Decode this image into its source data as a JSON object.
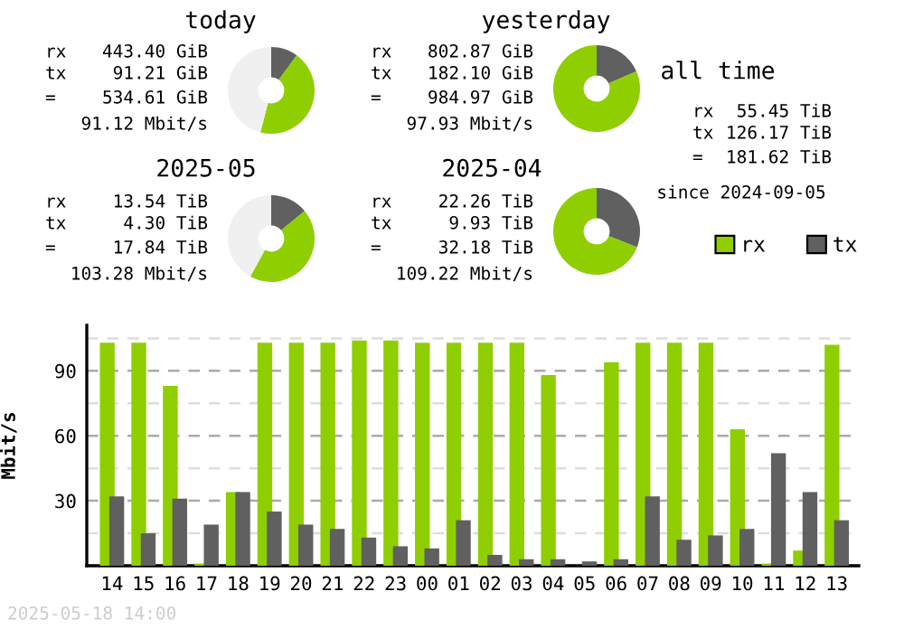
{
  "chart_data": [
    {
      "type": "donut",
      "title": "today",
      "categories": [
        null,
        null,
        null
      ],
      "values": [
        10,
        44,
        46
      ],
      "colors": [
        "#606060",
        "#8fce00",
        "#f0f0f0"
      ],
      "annotations": [
        "rx",
        "443.40 GiB",
        "tx",
        "91.21 GiB",
        "=",
        "534.61 GiB",
        "91.12 Mbit/s"
      ]
    },
    {
      "type": "donut",
      "title": "yesterday",
      "categories": [
        null,
        null
      ],
      "values": [
        18.5,
        81.5
      ],
      "colors": [
        "#606060",
        "#8fce00"
      ],
      "annotations": [
        "rx",
        "802.87 GiB",
        "tx",
        "182.10 GiB",
        "=",
        "984.97 GiB",
        "97.93 Mbit/s"
      ]
    },
    {
      "type": "other",
      "title": "all time",
      "annotations": [
        "rx",
        "55.45 TiB",
        "tx",
        "126.17 TiB",
        "=",
        "181.62 TiB",
        "since 2024-09-05"
      ]
    },
    {
      "type": "donut",
      "title": "2025-05",
      "categories": [
        null,
        null,
        null
      ],
      "values": [
        14,
        44,
        42
      ],
      "colors": [
        "#606060",
        "#8fce00",
        "#f0f0f0"
      ],
      "annotations": [
        "rx",
        "13.54 TiB",
        "tx",
        "4.30 TiB",
        "=",
        "17.84 TiB",
        "103.28 Mbit/s"
      ]
    },
    {
      "type": "donut",
      "title": "2025-04",
      "categories": [
        null,
        null
      ],
      "values": [
        30.9,
        69.1
      ],
      "colors": [
        "#606060",
        "#8fce00"
      ],
      "annotations": [
        "rx",
        "22.26 TiB",
        "tx",
        "9.93 TiB",
        "=",
        "32.18 TiB",
        "109.22 Mbit/s"
      ]
    },
    {
      "type": "bar",
      "ylabel": "Mbit/s",
      "legend": "top right",
      "grid": "y",
      "categories": [
        "14",
        "15",
        "16",
        "17",
        "18",
        "19",
        "20",
        "21",
        "22",
        "23",
        "00",
        "01",
        "02",
        "03",
        "04",
        "05",
        "06",
        "07",
        "08",
        "09",
        "10",
        "11",
        "12",
        "13"
      ],
      "ylim": [
        0,
        111
      ],
      "yticks": [
        {
          "value": 15,
          "label": null
        },
        30,
        {
          "value": 45,
          "label": null
        },
        60,
        {
          "value": 75,
          "label": null
        },
        90,
        {
          "value": 105,
          "label": null
        }
      ],
      "series": [
        {
          "name": "rx",
          "color": "#8fce00",
          "values": [
            103,
            103,
            83,
            1,
            34,
            103,
            103,
            103,
            104,
            104,
            103,
            103,
            103,
            103,
            88,
            0,
            94,
            103,
            103,
            103,
            63,
            1,
            7,
            102
          ]
        },
        {
          "name": "tx",
          "color": "#606060",
          "values": [
            32,
            15,
            31,
            19,
            34,
            25,
            19,
            17,
            13,
            9,
            8,
            21,
            5,
            3,
            3,
            2,
            3,
            32,
            12,
            14,
            17,
            52,
            34,
            21
          ]
        }
      ],
      "annotations": [
        "2025-05-18 14:00"
      ]
    }
  ]
}
